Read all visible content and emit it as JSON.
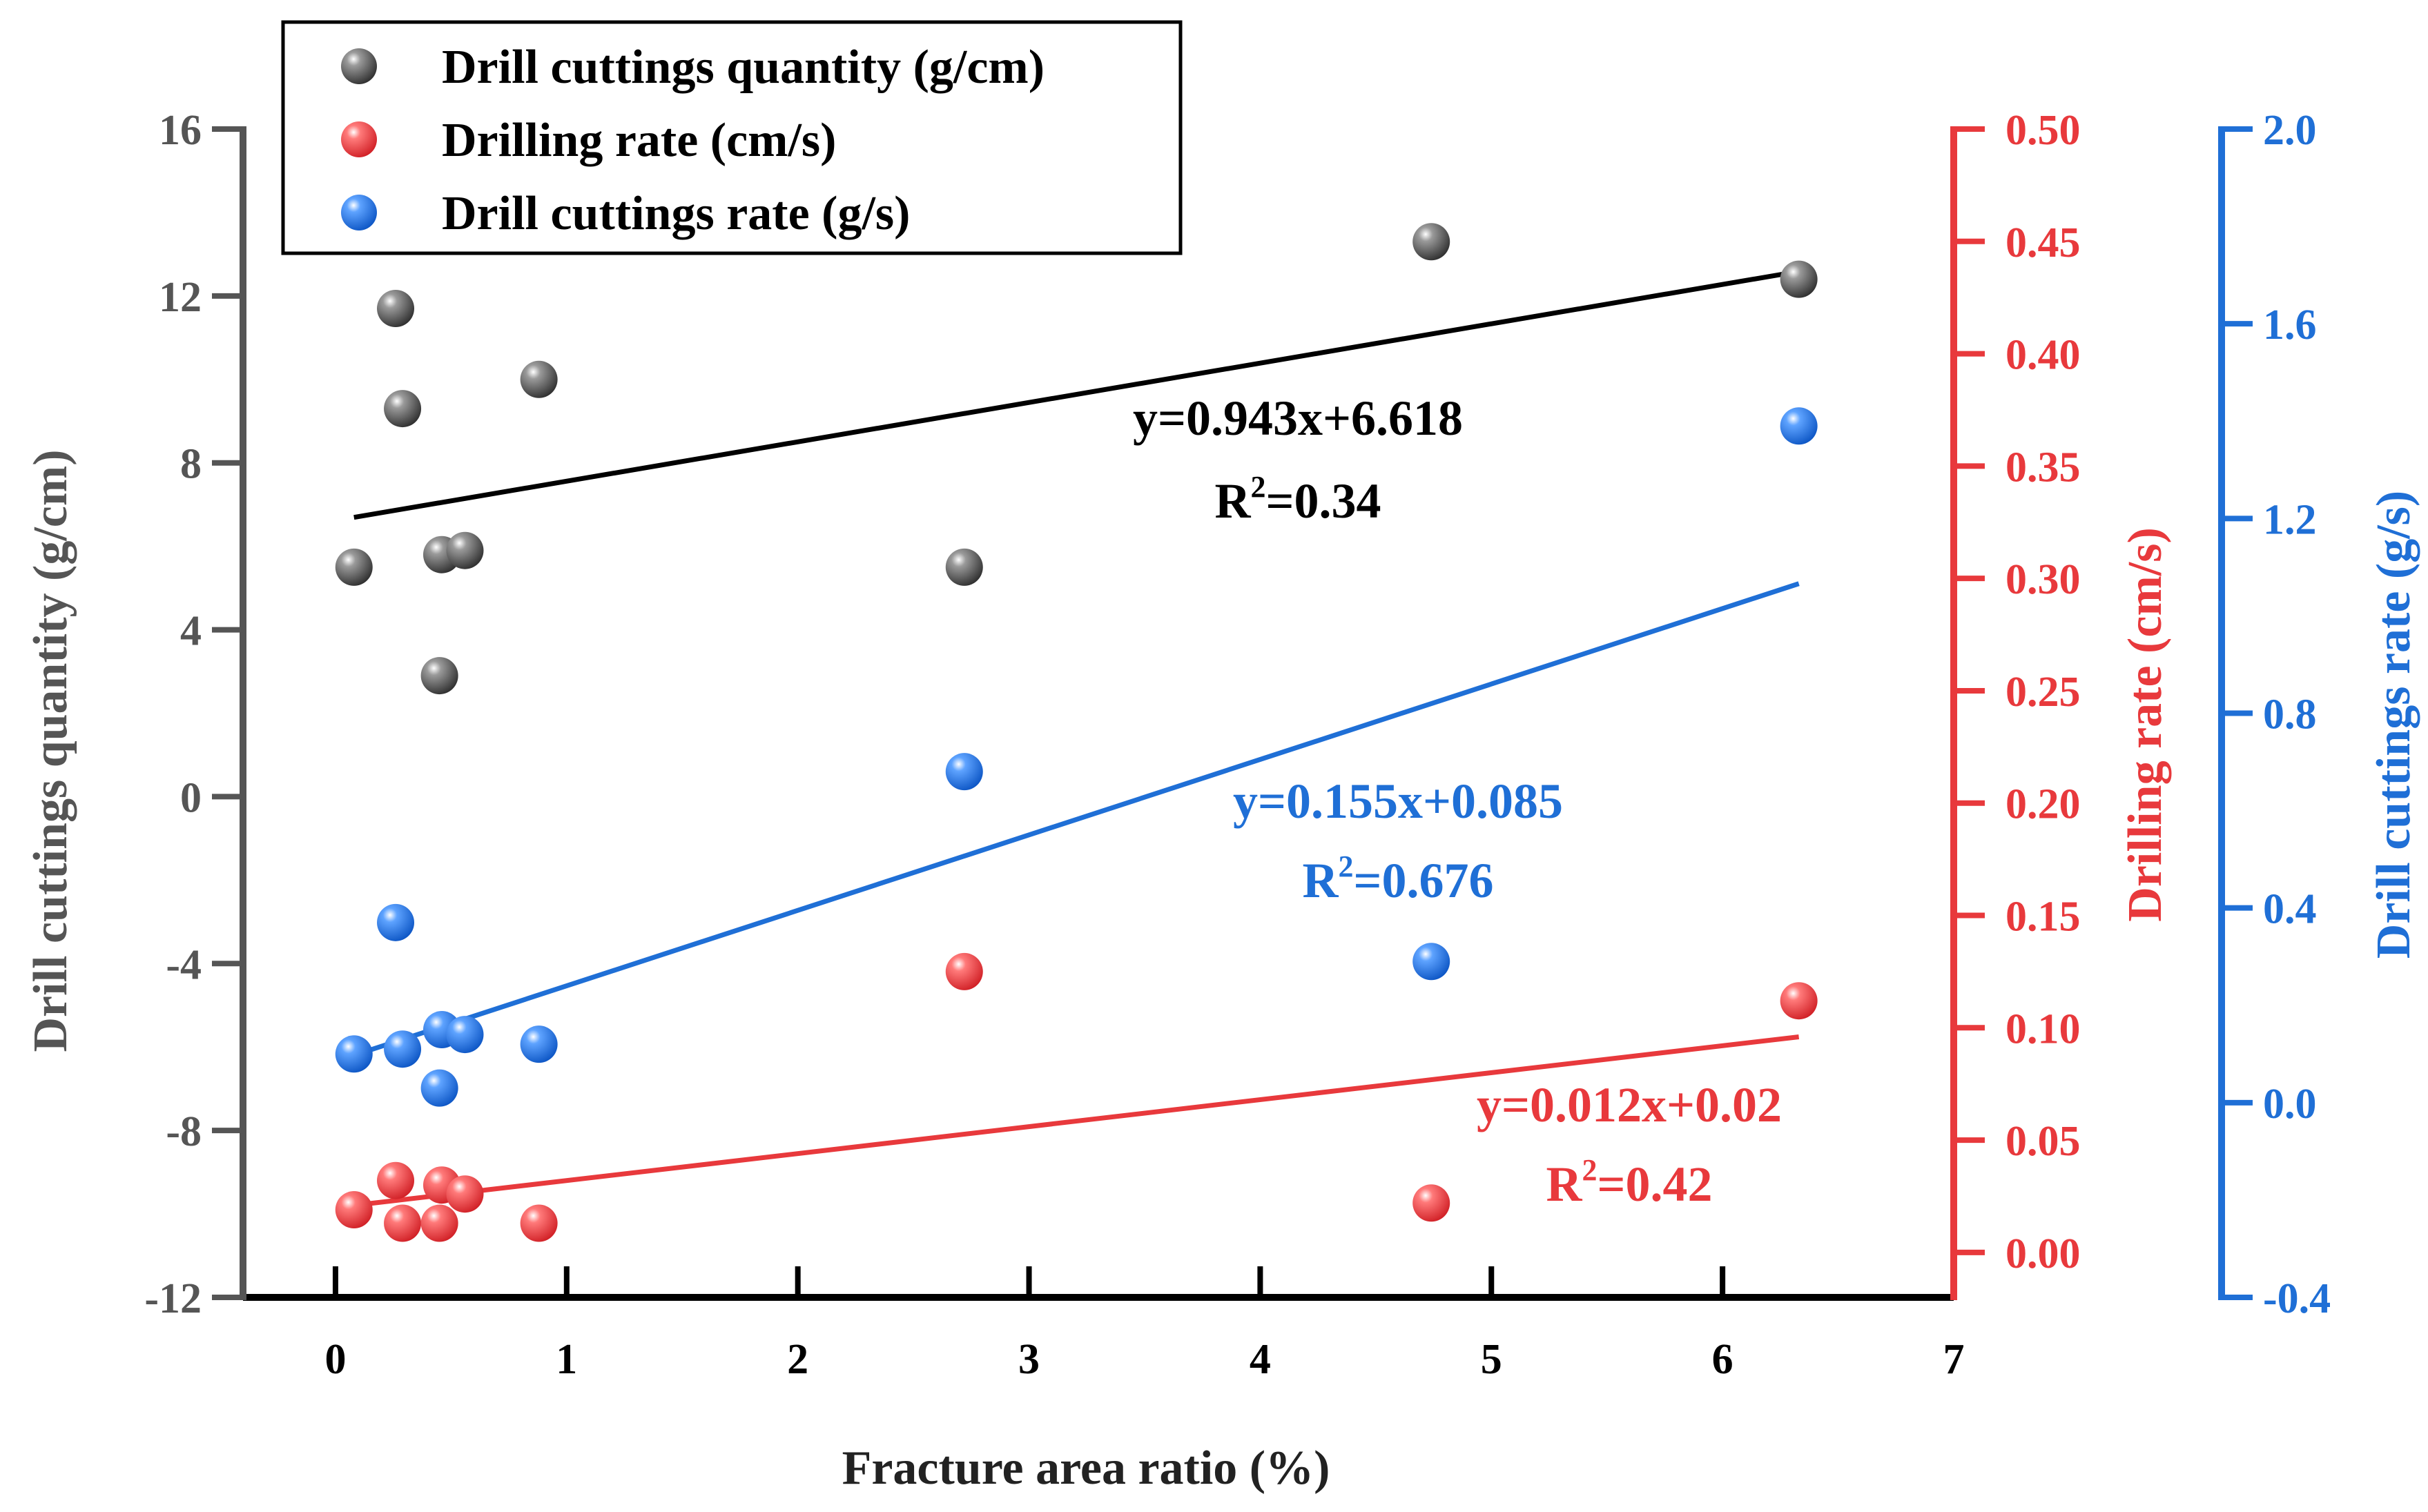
{
  "chart_data": {
    "type": "scatter",
    "xlabel": "Fracture area ratio (%)",
    "xlim": [
      -0.4,
      7
    ],
    "xticks": [
      0,
      1,
      2,
      3,
      4,
      5,
      6,
      7
    ],
    "axes": {
      "left": {
        "label": "Drill cuttings quantity (g/cm)",
        "lim": [
          -12,
          16
        ],
        "ticks": [
          -12,
          -8,
          -4,
          0,
          4,
          8,
          12,
          16
        ],
        "tick_labels": [
          "-12",
          "-8",
          "-4",
          "0",
          "4",
          "8",
          "12",
          "16"
        ],
        "color": "#555555"
      },
      "right1": {
        "label": "Drilling rate (cm/s)",
        "lim": [
          -0.02,
          0.5
        ],
        "ticks": [
          0.0,
          0.05,
          0.1,
          0.15,
          0.2,
          0.25,
          0.3,
          0.35,
          0.4,
          0.45,
          0.5
        ],
        "tick_labels": [
          "0.00",
          "0.05",
          "0.10",
          "0.15",
          "0.20",
          "0.25",
          "0.30",
          "0.35",
          "0.40",
          "0.45",
          "0.50"
        ],
        "color": "#e8393c"
      },
      "right2": {
        "label": "Drill cuttings rate (g/s)",
        "lim": [
          -0.4,
          2.0
        ],
        "ticks": [
          -0.4,
          0.0,
          0.4,
          0.8,
          1.2,
          1.6,
          2.0
        ],
        "tick_labels": [
          "-0.4",
          "0.0",
          "0.4",
          "0.8",
          "1.2",
          "1.6",
          "2.0"
        ],
        "color": "#1f6fd6"
      }
    },
    "series": [
      {
        "name": "Drill cuttings quantity (g/cm)",
        "axis": "left",
        "color": "#555555",
        "x": [
          0.08,
          0.26,
          0.29,
          0.45,
          0.46,
          0.56,
          0.88,
          2.72,
          4.74,
          6.33
        ],
        "y": [
          5.5,
          11.7,
          9.3,
          2.9,
          5.8,
          5.9,
          10.0,
          5.5,
          13.3,
          12.4
        ],
        "fit": {
          "slope": 0.943,
          "intercept": 6.618,
          "x_range": [
            0.08,
            6.33
          ]
        },
        "equation": "y=0.943x+6.618",
        "r2": "=0.34"
      },
      {
        "name": "Drilling rate (cm/s)",
        "axis": "right1",
        "color": "#e8393c",
        "x": [
          0.08,
          0.26,
          0.29,
          0.45,
          0.46,
          0.56,
          0.88,
          2.72,
          4.74,
          6.33
        ],
        "y": [
          0.019,
          0.032,
          0.013,
          0.013,
          0.03,
          0.026,
          0.013,
          0.125,
          0.022,
          0.112
        ],
        "fit": {
          "slope": 0.012,
          "intercept": 0.02,
          "x_range": [
            0.08,
            6.33
          ]
        },
        "equation": "y=0.012x+0.02",
        "r2": "=0.42"
      },
      {
        "name": "Drill cuttings rate (g/s)",
        "axis": "right2",
        "color": "#1f6fd6",
        "x": [
          0.08,
          0.26,
          0.29,
          0.45,
          0.46,
          0.56,
          0.88,
          2.72,
          4.74,
          6.33
        ],
        "y": [
          0.1,
          0.37,
          0.11,
          0.03,
          0.15,
          0.14,
          0.12,
          0.68,
          0.29,
          1.39
        ],
        "fit": {
          "slope": 0.155,
          "intercept": 0.085,
          "x_range": [
            0.08,
            6.33
          ]
        },
        "equation": "y=0.155x+0.085",
        "r2": "=0.676"
      }
    ],
    "r2_prefix": "R",
    "r2_superscript": "2"
  }
}
